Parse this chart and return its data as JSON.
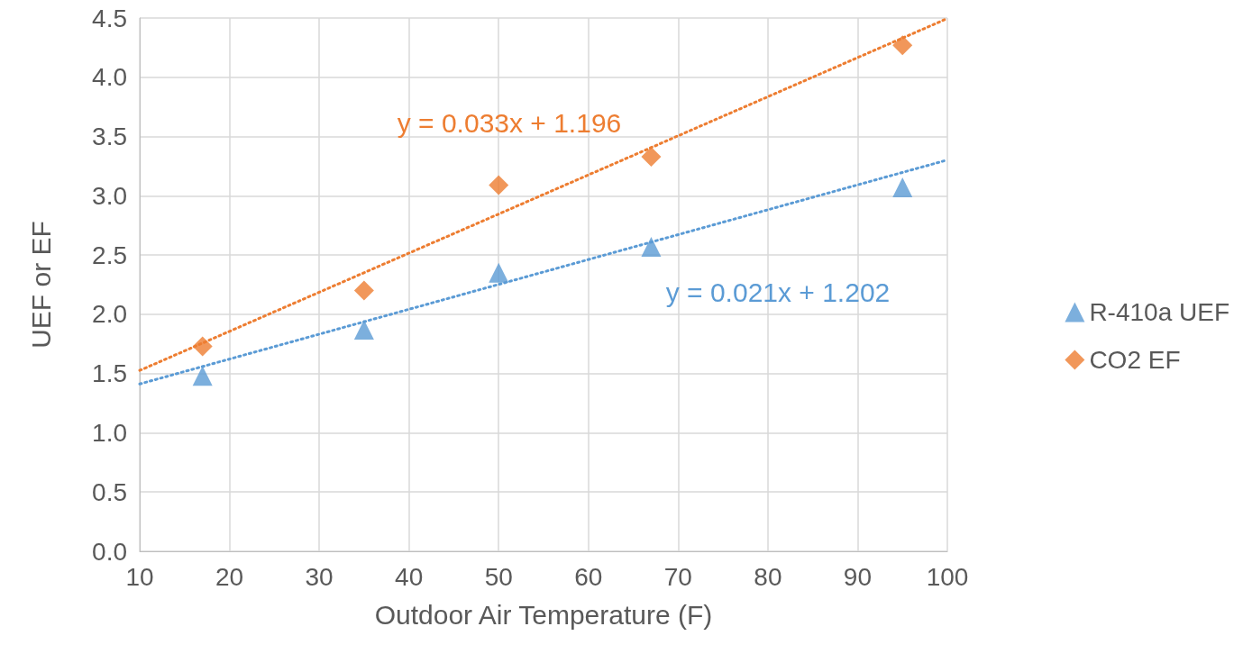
{
  "chart_data": {
    "type": "scatter",
    "xlabel": "Outdoor Air Temperature (F)",
    "ylabel": "UEF or EF",
    "xlim": [
      10,
      100
    ],
    "xticks": [
      10,
      20,
      30,
      40,
      50,
      60,
      70,
      80,
      90,
      100
    ],
    "ylim": [
      0,
      4.5
    ],
    "yticks": [
      {
        "value": 0,
        "label": "0.0"
      },
      {
        "value": 0.5,
        "label": "0.5"
      },
      {
        "value": 1,
        "label": "1.0"
      },
      {
        "value": 1.5,
        "label": "1.5"
      },
      {
        "value": 2,
        "label": "2.0"
      },
      {
        "value": 2.5,
        "label": "2.5"
      },
      {
        "value": 3,
        "label": "3.0"
      },
      {
        "value": 3.5,
        "label": "3.5"
      },
      {
        "value": 4,
        "label": "4.0"
      },
      {
        "value": 4.5,
        "label": "4.5"
      }
    ],
    "grid": true,
    "legend": "right",
    "x": [
      17,
      35,
      50,
      67,
      95
    ],
    "series": [
      {
        "name": "R-410a UEF",
        "color": "#5b9bd5",
        "values": [
          1.48,
          1.87,
          2.35,
          2.57,
          3.07
        ],
        "marker": "triangle"
      },
      {
        "name": "CO2 EF",
        "color": "#ed7d31",
        "values": [
          1.73,
          2.2,
          3.09,
          3.33,
          4.27
        ],
        "marker": "diamond"
      },
      {
        "type": "line",
        "color": "#ed7d31",
        "x": [
          10,
          55,
          100
        ],
        "values": [
          1.526,
          3.011,
          4.496
        ],
        "marker": "none",
        "line_style": "dotted"
      },
      {
        "type": "line",
        "color": "#5b9bd5",
        "x": [
          10,
          55,
          100
        ],
        "values": [
          1.412,
          2.357,
          3.302
        ],
        "marker": "none",
        "line_style": "dotted"
      }
    ],
    "annotations": [
      "y = 0.033x + 1.196",
      "y = 0.021x + 1.202"
    ]
  }
}
